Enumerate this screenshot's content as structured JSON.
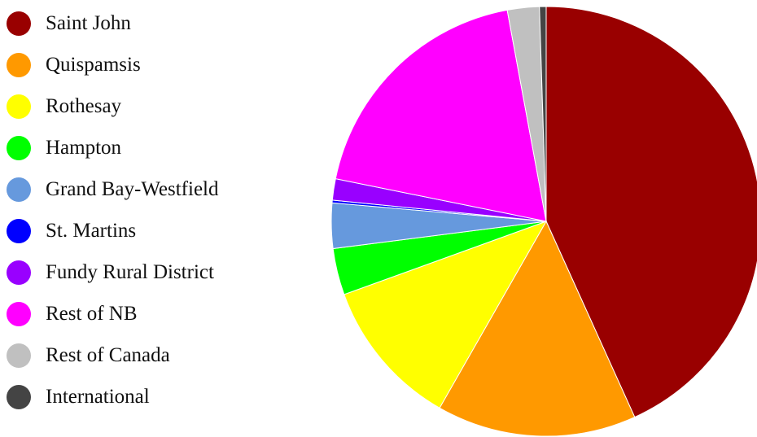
{
  "chart_data": {
    "type": "pie",
    "title": "",
    "legend_position": "left",
    "slices": [
      {
        "label": "Saint John",
        "value": 43.2,
        "color": "#990000"
      },
      {
        "label": "Quispamsis",
        "value": 15.0,
        "color": "#ff9900"
      },
      {
        "label": "Rothesay",
        "value": 11.2,
        "color": "#ffff00"
      },
      {
        "label": "Hampton",
        "value": 3.5,
        "color": "#00ff00"
      },
      {
        "label": "Grand Bay-Westfield",
        "value": 3.4,
        "color": "#6699dd"
      },
      {
        "label": "St. Martins",
        "value": 0.2,
        "color": "#0000ff"
      },
      {
        "label": "Fundy Rural District",
        "value": 1.6,
        "color": "#9900ff"
      },
      {
        "label": "Rest of NB",
        "value": 18.9,
        "color": "#ff00ff"
      },
      {
        "label": "Rest of Canada",
        "value": 2.4,
        "color": "#c0c0c0"
      },
      {
        "label": "International",
        "value": 0.5,
        "color": "#444444"
      }
    ]
  }
}
